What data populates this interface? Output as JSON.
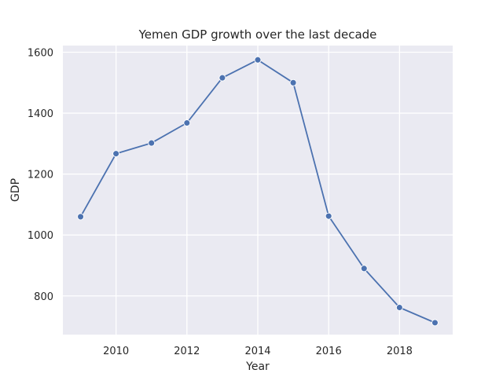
{
  "chart_data": {
    "type": "line",
    "title": "Yemen GDP growth over the last decade",
    "xlabel": "Year",
    "ylabel": "GDP",
    "x": [
      2009,
      2010,
      2011,
      2012,
      2013,
      2014,
      2015,
      2016,
      2017,
      2018,
      2019
    ],
    "series": [
      {
        "values": [
          1060,
          1267,
          1302,
          1368,
          1516,
          1575,
          1500,
          1062,
          890,
          762,
          712
        ]
      }
    ],
    "xlim": [
      2008.5,
      2019.5
    ],
    "ylim": [
      673,
      1622
    ],
    "xticks": [
      2010,
      2012,
      2014,
      2016,
      2018
    ],
    "yticks": [
      800,
      1000,
      1200,
      1400,
      1600
    ],
    "xtick_labels": [
      "2010",
      "2012",
      "2014",
      "2016",
      "2018"
    ],
    "ytick_labels": [
      "800",
      "1000",
      "1200",
      "1400",
      "1600"
    ],
    "grid": true,
    "colors": {
      "background": "#eaeaf2",
      "grid": "#ffffff",
      "line": "#4c72b0"
    }
  }
}
